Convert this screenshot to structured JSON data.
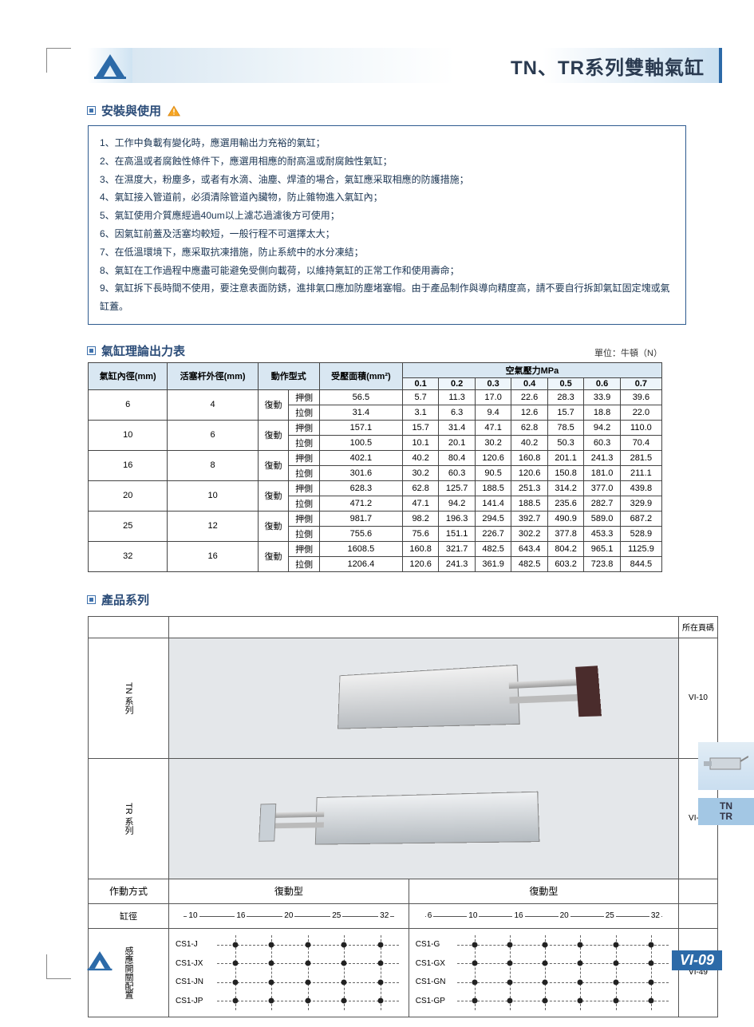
{
  "header": {
    "title": "TN、TR系列雙軸氣缸"
  },
  "sections": {
    "install": {
      "heading": "安裝與使用",
      "items": [
        "1、工作中負載有變化時，應選用輸出力充裕的氣缸；",
        "2、在高溫或者腐蝕性條件下，應選用相應的耐高溫或耐腐蝕性氣缸；",
        "3、在濕度大，粉塵多，或者有水滴、油塵、焊渣的場合，氣缸應采取相應的防護措施；",
        "4、氣缸接入管道前，必須清除管道內臟物，防止雜物進入氣缸內；",
        "5、氣缸使用介質應經過40um以上濾芯過濾後方可使用；",
        "6、因氣缸前蓋及活塞均較短，一般行程不可選擇太大；",
        "7、在低溫環境下，應采取抗凍措施，防止系統中的水分凍結；",
        "8、氣缸在工作過程中應盡可能避免受側向載荷，以維持氣缸的正常工作和使用壽命；",
        "9、氣缸拆下長時間不使用，要注意表面防銹，進排氣口應加防塵堵塞帽。由于產品制作與導向精度高，請不要自行拆卸氣缸固定塊或氣缸蓋。"
      ]
    },
    "force": {
      "heading": "氣缸理論出力表",
      "unit": "單位：牛頓（N）",
      "col_main": [
        "氣缸內徑(mm)",
        "活塞杆外徑(mm)",
        "動作型式",
        "受壓面積(mm²)"
      ],
      "pressure_header": "空氣壓力MPa",
      "pressures": [
        "0.1",
        "0.2",
        "0.3",
        "0.4",
        "0.5",
        "0.6",
        "0.7"
      ],
      "action_label": "復動",
      "push_label": "押側",
      "pull_label": "拉側",
      "rows": [
        {
          "bore": "6",
          "rod": "4",
          "push": {
            "area": "56.5",
            "v": [
              "5.7",
              "11.3",
              "17.0",
              "22.6",
              "28.3",
              "33.9",
              "39.6"
            ]
          },
          "pull": {
            "area": "31.4",
            "v": [
              "3.1",
              "6.3",
              "9.4",
              "12.6",
              "15.7",
              "18.8",
              "22.0"
            ]
          }
        },
        {
          "bore": "10",
          "rod": "6",
          "push": {
            "area": "157.1",
            "v": [
              "15.7",
              "31.4",
              "47.1",
              "62.8",
              "78.5",
              "94.2",
              "110.0"
            ]
          },
          "pull": {
            "area": "100.5",
            "v": [
              "10.1",
              "20.1",
              "30.2",
              "40.2",
              "50.3",
              "60.3",
              "70.4"
            ]
          }
        },
        {
          "bore": "16",
          "rod": "8",
          "push": {
            "area": "402.1",
            "v": [
              "40.2",
              "80.4",
              "120.6",
              "160.8",
              "201.1",
              "241.3",
              "281.5"
            ]
          },
          "pull": {
            "area": "301.6",
            "v": [
              "30.2",
              "60.3",
              "90.5",
              "120.6",
              "150.8",
              "181.0",
              "211.1"
            ]
          }
        },
        {
          "bore": "20",
          "rod": "10",
          "push": {
            "area": "628.3",
            "v": [
              "62.8",
              "125.7",
              "188.5",
              "251.3",
              "314.2",
              "377.0",
              "439.8"
            ]
          },
          "pull": {
            "area": "471.2",
            "v": [
              "47.1",
              "94.2",
              "141.4",
              "188.5",
              "235.6",
              "282.7",
              "329.9"
            ]
          }
        },
        {
          "bore": "25",
          "rod": "12",
          "push": {
            "area": "981.7",
            "v": [
              "98.2",
              "196.3",
              "294.5",
              "392.7",
              "490.9",
              "589.0",
              "687.2"
            ]
          },
          "pull": {
            "area": "755.6",
            "v": [
              "75.6",
              "151.1",
              "226.7",
              "302.2",
              "377.8",
              "453.3",
              "528.9"
            ]
          }
        },
        {
          "bore": "32",
          "rod": "16",
          "push": {
            "area": "1608.5",
            "v": [
              "160.8",
              "321.7",
              "482.5",
              "643.4",
              "804.2",
              "965.1",
              "1125.9"
            ]
          },
          "pull": {
            "area": "1206.4",
            "v": [
              "120.6",
              "241.3",
              "361.9",
              "482.5",
              "603.2",
              "723.8",
              "844.5"
            ]
          }
        }
      ]
    },
    "products": {
      "heading": "產品系列",
      "page_col_header": "所在頁碼",
      "series": [
        {
          "label": "TN\n系列",
          "page": "VI-10",
          "bores": [
            "10",
            "16",
            "20",
            "25",
            "32"
          ],
          "switches": [
            "CS1-J",
            "CS1-JX",
            "CS1-JN",
            "CS1-JP"
          ]
        },
        {
          "label": "TR\n系列",
          "page": "VI-12",
          "bores": [
            "6",
            "10",
            "16",
            "20",
            "25",
            "32"
          ],
          "switches": [
            "CS1-G",
            "CS1-GX",
            "CS1-GN",
            "CS1-GP"
          ]
        }
      ],
      "action_row_label": "作動方式",
      "action_value": "復動型",
      "bore_row_label": "缸徑",
      "switch_row_label": "感應開關配置",
      "switch_page": "VI-49"
    }
  },
  "side_tab": {
    "line1": "TN",
    "line2": "TR"
  },
  "footer": {
    "page": "VI-09"
  },
  "colors": {
    "brand": "#2c6aa8",
    "head_bg": "#d9e7f2"
  }
}
